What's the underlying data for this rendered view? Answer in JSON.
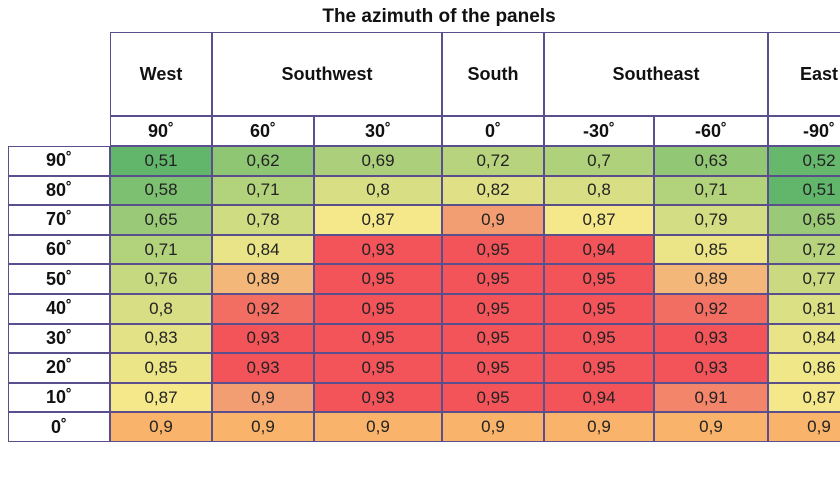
{
  "chart_data": {
    "type": "heatmap",
    "title": "The azimuth of the panels",
    "directions": [
      "West",
      "Southwest",
      "South",
      "Southeast",
      "East"
    ],
    "columns": [
      "90˚",
      "60˚",
      "30˚",
      "0˚",
      "-30˚",
      "-60˚",
      "-90˚"
    ],
    "rows": [
      "90˚",
      "80˚",
      "70˚",
      "60˚",
      "50˚",
      "40˚",
      "30˚",
      "20˚",
      "10˚",
      "0˚"
    ],
    "values": [
      [
        "0,51",
        "0,62",
        "0,69",
        "0,72",
        "0,7",
        "0,63",
        "0,52"
      ],
      [
        "0,58",
        "0,71",
        "0,8",
        "0,82",
        "0,8",
        "0,71",
        "0,51"
      ],
      [
        "0,65",
        "0,78",
        "0,87",
        "0,9",
        "0,87",
        "0,79",
        "0,65"
      ],
      [
        "0,71",
        "0,84",
        "0,93",
        "0,95",
        "0,94",
        "0,85",
        "0,72"
      ],
      [
        "0,76",
        "0,89",
        "0,95",
        "0,95",
        "0,95",
        "0,89",
        "0,77"
      ],
      [
        "0,8",
        "0,92",
        "0,95",
        "0,95",
        "0,95",
        "0,92",
        "0,81"
      ],
      [
        "0,83",
        "0,93",
        "0,95",
        "0,95",
        "0,95",
        "0,93",
        "0,84"
      ],
      [
        "0,85",
        "0,93",
        "0,95",
        "0,95",
        "0,95",
        "0,93",
        "0,86"
      ],
      [
        "0,87",
        "0,9",
        "0,93",
        "0,95",
        "0,94",
        "0,91",
        "0,87"
      ],
      [
        "0,9",
        "0,9",
        "0,9",
        "0,9",
        "0,9",
        "0,9",
        "0,9"
      ]
    ],
    "color_scale": {
      "low": "#5db56a",
      "mid": "#f4e88a",
      "high": "#f2545a",
      "bottom_row": "#f9b36b"
    }
  }
}
